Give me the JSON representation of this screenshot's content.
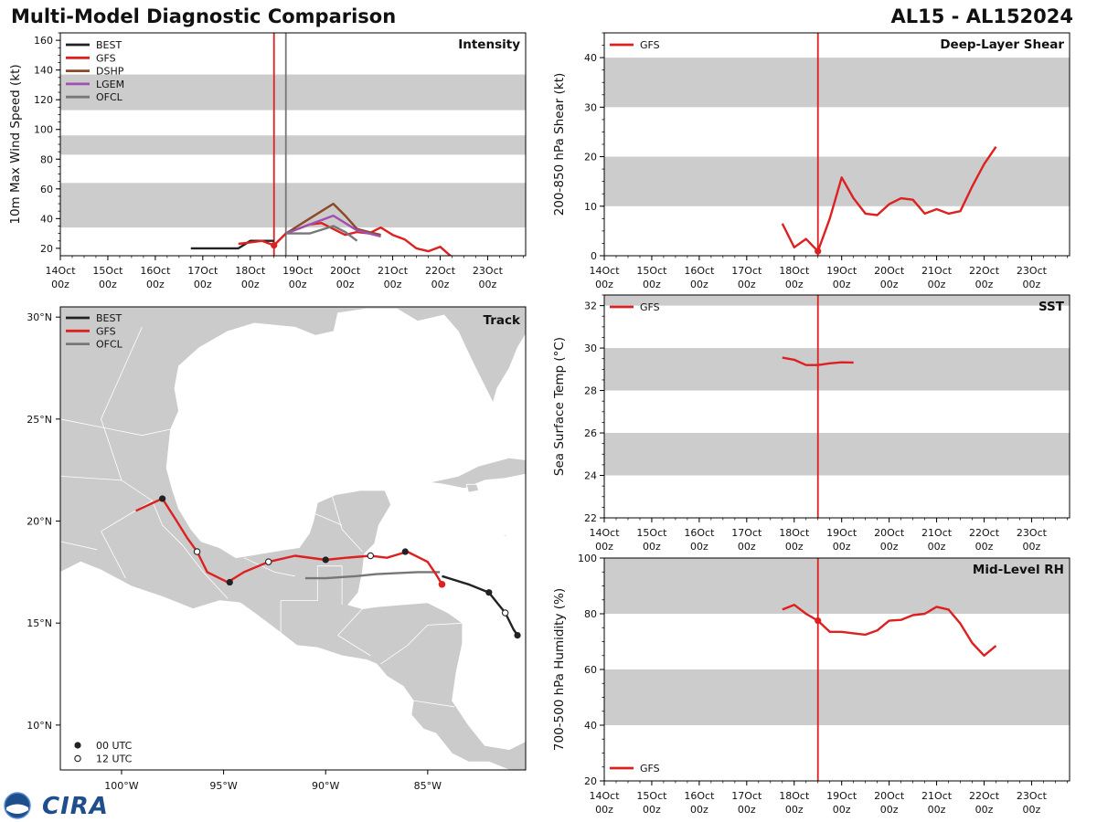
{
  "header": {
    "title": "Multi-Model Diagnostic Comparison",
    "storm_id": "AL15 - AL152024"
  },
  "logo": {
    "text": "CIRA"
  },
  "colors": {
    "BEST": "#222222",
    "GFS": "#dd2020",
    "DSHP": "#8b4a25",
    "LGEM": "#a050b0",
    "OFCL": "#777777",
    "band": "#cccccc",
    "land": "#cbcbcb"
  },
  "time_axis": {
    "tick_labels": [
      "14Oct\n00z",
      "15Oct\n00z",
      "16Oct\n00z",
      "17Oct\n00z",
      "18Oct\n00z",
      "19Oct\n00z",
      "20Oct\n00z",
      "21Oct\n00z",
      "22Oct\n00z",
      "23Oct\n00z"
    ],
    "range_days": [
      0,
      9.8
    ],
    "init_time_day": 4.5
  },
  "chart_data": [
    {
      "id": "intensity",
      "type": "line",
      "title": "Intensity",
      "ylabel": "10m Max Wind Speed (kt)",
      "ylim": [
        15,
        165
      ],
      "yticks": [
        20,
        40,
        60,
        80,
        100,
        120,
        140,
        160
      ],
      "bands": [
        [
          34,
          64
        ],
        [
          83,
          96
        ],
        [
          113,
          137
        ]
      ],
      "vlines": [
        {
          "day": 4.5,
          "color": "#dd2020"
        },
        {
          "day": 4.75,
          "color": "#777777"
        }
      ],
      "markers": [
        {
          "series": "GFS",
          "day": 4.5,
          "value": 22
        }
      ],
      "legend": [
        "BEST",
        "GFS",
        "DSHP",
        "LGEM",
        "OFCL"
      ],
      "series": [
        {
          "name": "BEST",
          "x": [
            2.75,
            3.0,
            3.25,
            3.5,
            3.75,
            4.0,
            4.25,
            4.5
          ],
          "y": [
            20,
            20,
            20,
            20,
            20,
            25,
            25,
            25
          ]
        },
        {
          "name": "GFS",
          "x": [
            3.75,
            4.0,
            4.25,
            4.5,
            4.75,
            5.0,
            5.25,
            5.5,
            5.75,
            6.0,
            6.25,
            6.5,
            6.75,
            7.0,
            7.25,
            7.5,
            7.75,
            8.0,
            8.25
          ],
          "y": [
            23,
            24,
            25,
            22,
            30,
            33,
            36,
            37,
            33,
            29,
            31,
            30,
            34,
            29,
            26,
            20,
            18,
            21,
            14
          ]
        },
        {
          "name": "DSHP",
          "x": [
            4.75,
            5.0,
            5.25,
            5.5,
            5.75,
            6.0,
            6.25,
            6.5,
            6.75
          ],
          "y": [
            30,
            35,
            40,
            45,
            50,
            42,
            33,
            31,
            29
          ]
        },
        {
          "name": "LGEM",
          "x": [
            4.75,
            5.0,
            5.25,
            5.5,
            5.75,
            6.0,
            6.25,
            6.5,
            6.75
          ],
          "y": [
            30,
            33,
            36,
            39,
            42,
            37,
            32,
            30,
            28
          ]
        },
        {
          "name": "OFCL",
          "x": [
            4.75,
            5.0,
            5.25,
            5.75,
            6.0,
            6.25
          ],
          "y": [
            30,
            30,
            30,
            35,
            31,
            25
          ]
        }
      ]
    },
    {
      "id": "shear",
      "type": "line",
      "title": "Deep-Layer Shear",
      "ylabel": "200-850 hPa Shear (kt)",
      "ylim": [
        0,
        45
      ],
      "yticks": [
        0,
        10,
        20,
        30,
        40
      ],
      "bands": [
        [
          10,
          20
        ],
        [
          30,
          40
        ]
      ],
      "vlines": [
        {
          "day": 4.5,
          "color": "#dd2020"
        }
      ],
      "markers": [
        {
          "series": "GFS",
          "day": 4.5,
          "value": 0.9
        }
      ],
      "legend": [
        "GFS"
      ],
      "series": [
        {
          "name": "GFS",
          "x": [
            3.75,
            4.0,
            4.25,
            4.5,
            4.75,
            5.0,
            5.25,
            5.5,
            5.75,
            6.0,
            6.25,
            6.5,
            6.75,
            7.0,
            7.25,
            7.5,
            7.75,
            8.0,
            8.25
          ],
          "y": [
            6.5,
            1.7,
            3.4,
            0.9,
            7.5,
            15.8,
            11.6,
            8.5,
            8.2,
            10.4,
            11.6,
            11.3,
            8.5,
            9.4,
            8.5,
            9.0,
            14.0,
            18.5,
            22.0
          ]
        }
      ]
    },
    {
      "id": "sst",
      "type": "line",
      "title": "SST",
      "ylabel": "Sea Surface Temp (°C)",
      "ylim": [
        22,
        32.5
      ],
      "yticks": [
        22,
        24,
        26,
        28,
        30,
        32
      ],
      "bands": [
        [
          24,
          26
        ],
        [
          28,
          30
        ],
        [
          32,
          34
        ]
      ],
      "vlines": [
        {
          "day": 4.5,
          "color": "#dd2020"
        }
      ],
      "markers": [],
      "legend": [
        "GFS"
      ],
      "series": [
        {
          "name": "GFS",
          "x": [
            3.75,
            4.0,
            4.25,
            4.5,
            4.75,
            5.0,
            5.25
          ],
          "y": [
            29.55,
            29.45,
            29.2,
            29.2,
            29.28,
            29.33,
            29.32
          ]
        }
      ]
    },
    {
      "id": "rh",
      "type": "line",
      "title": "Mid-Level RH",
      "ylabel": "700-500 hPa Humidity (%)",
      "ylim": [
        20,
        100
      ],
      "yticks": [
        20,
        40,
        60,
        80,
        100
      ],
      "bands": [
        [
          40,
          60
        ],
        [
          80,
          100
        ]
      ],
      "vlines": [
        {
          "day": 4.5,
          "color": "#dd2020"
        }
      ],
      "markers": [
        {
          "series": "GFS",
          "day": 4.5,
          "value": 77.5
        }
      ],
      "legend": [
        "GFS"
      ],
      "series": [
        {
          "name": "GFS",
          "x": [
            3.75,
            4.0,
            4.25,
            4.5,
            4.75,
            5.0,
            5.25,
            5.5,
            5.75,
            6.0,
            6.25,
            6.5,
            6.75,
            7.0,
            7.25,
            7.5,
            7.75,
            8.0,
            8.25
          ],
          "y": [
            81.5,
            83.2,
            80.0,
            77.5,
            73.5,
            73.5,
            73.0,
            72.5,
            74.0,
            77.5,
            77.8,
            79.5,
            80.0,
            82.5,
            81.5,
            76.5,
            69.5,
            65.0,
            68.5
          ]
        }
      ]
    },
    {
      "id": "track",
      "type": "line",
      "title": "Track",
      "lon_range": [
        -103,
        -80.2
      ],
      "lat_range": [
        7.8,
        30.5
      ],
      "lon_ticks": [
        -100,
        -95,
        -90,
        -85
      ],
      "lon_tick_labels": [
        "100°W",
        "95°W",
        "90°W",
        "85°W"
      ],
      "lat_ticks": [
        10,
        15,
        20,
        25,
        30
      ],
      "lat_tick_labels": [
        "10°N",
        "15°N",
        "20°N",
        "25°N",
        "30°N"
      ],
      "legend": [
        "BEST",
        "GFS",
        "OFCL"
      ],
      "marker_legend": [
        "00 UTC",
        "12 UTC"
      ],
      "series": [
        {
          "name": "BEST",
          "lon": [
            -80.6,
            -80.8,
            -81.2,
            -81.6,
            -82.0,
            -83.0,
            -84.3
          ],
          "lat": [
            14.4,
            14.7,
            15.5,
            16.0,
            16.5,
            16.9,
            17.3
          ]
        },
        {
          "name": "OFCL",
          "lon": [
            -84.4,
            -85.5,
            -87.5,
            -88.5,
            -90.0,
            -91.0
          ],
          "lat": [
            17.5,
            17.5,
            17.4,
            17.3,
            17.2,
            17.2
          ]
        },
        {
          "name": "GFS",
          "lon": [
            -84.3,
            -84.6,
            -85.0,
            -86.0,
            -87.0,
            -87.8,
            -89.0,
            -90.0,
            -91.5,
            -92.8,
            -94.0,
            -94.8,
            -95.8,
            -96.3,
            -96.8,
            -97.3,
            -98.0,
            -99.3
          ],
          "lat": [
            16.9,
            17.4,
            18.0,
            18.5,
            18.2,
            18.3,
            18.2,
            18.1,
            18.3,
            18.0,
            17.5,
            17.0,
            17.5,
            18.5,
            19.2,
            20.0,
            21.1,
            20.5
          ]
        }
      ],
      "markers_00utc": [
        [
          -80.6,
          14.4
        ],
        [
          -82.0,
          16.5
        ],
        [
          -94.7,
          17.0
        ],
        [
          -90.0,
          18.1
        ],
        [
          -86.1,
          18.5
        ],
        [
          -98.0,
          21.1
        ]
      ],
      "markers_12utc": [
        [
          -81.2,
          15.5
        ],
        [
          -96.3,
          18.5
        ],
        [
          -92.8,
          18.0
        ],
        [
          -87.8,
          18.3
        ]
      ],
      "markers_gfs_now": [
        [
          -84.3,
          16.9
        ]
      ]
    }
  ]
}
